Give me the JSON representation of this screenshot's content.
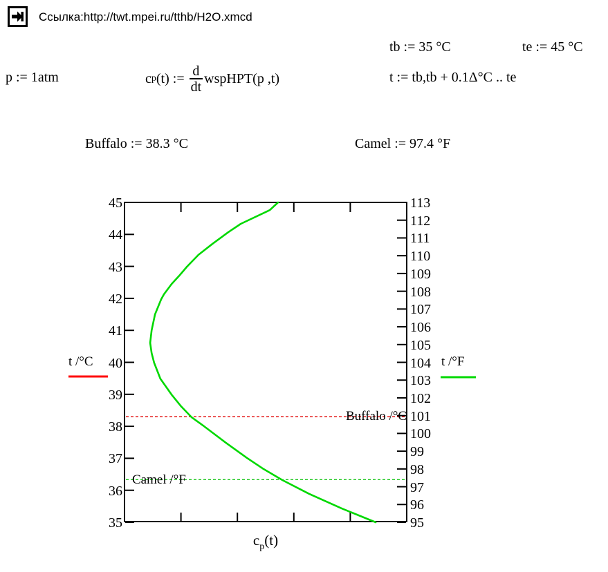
{
  "header": {
    "icon": "hyperlink-arrow-icon",
    "link_text": "Ссылка:http://twt.mpei.ru/tthb/H2O.xmcd"
  },
  "expressions": {
    "tb": "tb := 35 °C",
    "te": "te := 45 °C",
    "p": "p := 1atm",
    "cp_def": {
      "lhs_base": "c",
      "lhs_sub": "p",
      "lhs_rest": "(t) := ",
      "frac_num": "d",
      "frac_den": "dt",
      "rhs": "wspHPT(p ,t)"
    },
    "t_range": "t := tb,tb + 0.1Δ°C .. te",
    "buffalo": "Buffalo := 38.3 °C",
    "camel": "Camel := 97.4 °F"
  },
  "chart": {
    "left_axis": {
      "label": "t /°C",
      "color": "#ff0000"
    },
    "right_axis": {
      "label": "t /°F",
      "color": "#00d800"
    },
    "x_label": {
      "base": "c",
      "sub": "p",
      "rest": "(t)"
    },
    "markers": [
      {
        "label": "Buffalo /°C"
      },
      {
        "label": "Camel /°F"
      }
    ]
  },
  "chart_data": {
    "type": "line",
    "xlabel": "cp(t)",
    "x_axis_note": "x axis has 4 interior ticks, no numeric labels; series x given as fraction 0-1 of plot width",
    "y_left": {
      "label": "t /°C",
      "range": [
        35,
        45
      ],
      "ticks": [
        45,
        44,
        43,
        42,
        41,
        40,
        39,
        38,
        37,
        36,
        35
      ]
    },
    "y_right": {
      "label": "t /°F",
      "range": [
        95,
        113
      ],
      "ticks": [
        113,
        112,
        111,
        110,
        109,
        108,
        107,
        106,
        105,
        104,
        103,
        102,
        101,
        100,
        99,
        98,
        97,
        96,
        95
      ]
    },
    "series": [
      {
        "name": "cp(t) = d/dt wspHPT(p,t)",
        "color": "#00d800",
        "points_xrel_t": [
          [
            0.89,
            35.0
          ],
          [
            0.77,
            35.43
          ],
          [
            0.654,
            35.89
          ],
          [
            0.559,
            36.32
          ],
          [
            0.49,
            36.68
          ],
          [
            0.434,
            37.01
          ],
          [
            0.36,
            37.48
          ],
          [
            0.282,
            38.0
          ],
          [
            0.238,
            38.28
          ],
          [
            0.201,
            38.62
          ],
          [
            0.167,
            38.99
          ],
          [
            0.127,
            39.49
          ],
          [
            0.105,
            39.99
          ],
          [
            0.096,
            40.29
          ],
          [
            0.091,
            40.61
          ],
          [
            0.096,
            41.0
          ],
          [
            0.108,
            41.5
          ],
          [
            0.13,
            41.97
          ],
          [
            0.14,
            42.13
          ],
          [
            0.167,
            42.45
          ],
          [
            0.196,
            42.73
          ],
          [
            0.221,
            42.99
          ],
          [
            0.262,
            43.36
          ],
          [
            0.311,
            43.7
          ],
          [
            0.368,
            44.07
          ],
          [
            0.412,
            44.33
          ],
          [
            0.515,
            44.76
          ],
          [
            0.544,
            45.0
          ]
        ]
      }
    ],
    "reference_lines": [
      {
        "name": "Buffalo /°C",
        "t_celsius": 38.3,
        "color": "#e00000",
        "style": "dashed"
      },
      {
        "name": "Camel /°F",
        "t_fahrenheit": 97.4,
        "color": "#00c000",
        "style": "dashed"
      }
    ],
    "legend_position": "axis labels outside left and right at mid-height",
    "grid": false
  }
}
